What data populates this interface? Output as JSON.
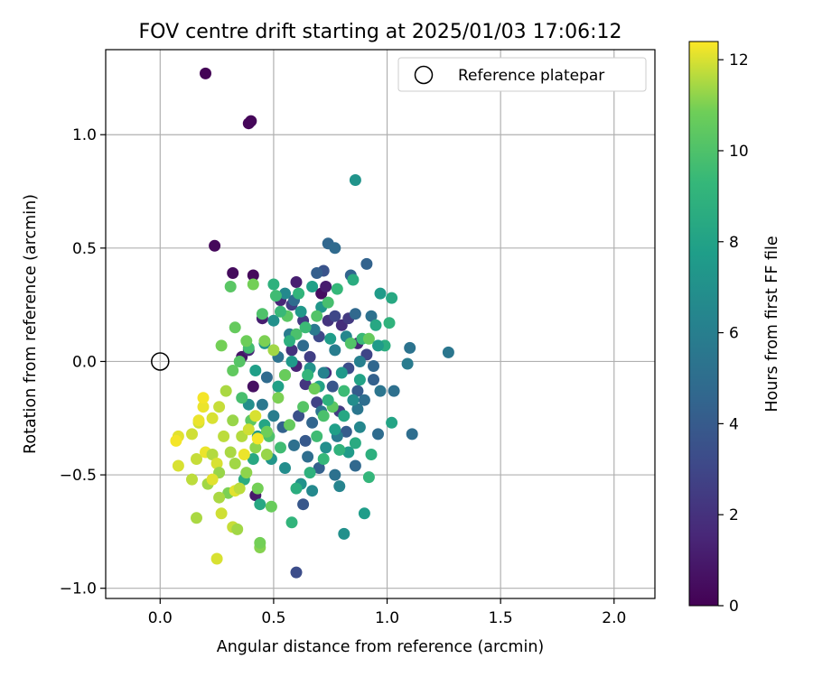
{
  "chart_data": {
    "type": "scatter",
    "title": "FOV centre drift starting at 2025/01/03 17:06:12",
    "xlabel": "Angular distance from reference (arcmin)",
    "ylabel": "Rotation from reference (arcmin)",
    "xlim": [
      -0.24,
      2.18
    ],
    "ylim": [
      -1.045,
      1.375
    ],
    "xticks": [
      0.0,
      0.5,
      1.0,
      1.5,
      2.0
    ],
    "xtick_labels": [
      "0.0",
      "0.5",
      "1.0",
      "1.5",
      "2.0"
    ],
    "yticks": [
      -1.0,
      -0.5,
      0.0,
      0.5,
      1.0
    ],
    "ytick_labels": [
      "−1.0",
      "−0.5",
      "0.0",
      "0.5",
      "1.0"
    ],
    "grid": true,
    "legend": {
      "position": "top-right",
      "label": "Reference platepar"
    },
    "reference_point": {
      "x": 0.0,
      "y": 0.0
    },
    "colorbar": {
      "label": "Hours from first FF file",
      "range": [
        0,
        12.4
      ],
      "ticks": [
        0,
        2,
        4,
        6,
        8,
        10,
        12
      ],
      "tick_labels": [
        "0",
        "2",
        "4",
        "6",
        "8",
        "10",
        "12"
      ],
      "colormap": "viridis"
    },
    "points": [
      [
        0.2,
        1.27,
        0.1
      ],
      [
        0.39,
        1.05,
        0.2
      ],
      [
        0.4,
        1.06,
        0.2
      ],
      [
        0.24,
        0.51,
        0.3
      ],
      [
        0.32,
        0.39,
        0.4
      ],
      [
        0.41,
        0.38,
        0.3
      ],
      [
        0.36,
        0.02,
        0.8
      ],
      [
        0.45,
        0.19,
        1.2
      ],
      [
        0.39,
        0.05,
        1.5
      ],
      [
        0.41,
        -0.11,
        0.6
      ],
      [
        0.42,
        -0.59,
        1.0
      ],
      [
        0.53,
        0.27,
        1.5
      ],
      [
        0.58,
        0.25,
        2.6
      ],
      [
        0.6,
        0.35,
        1.2
      ],
      [
        0.63,
        0.18,
        2.4
      ],
      [
        0.71,
        0.3,
        0.5
      ],
      [
        0.73,
        0.33,
        1.1
      ],
      [
        0.74,
        0.18,
        2.1
      ],
      [
        0.77,
        0.2,
        3.0
      ],
      [
        0.8,
        0.16,
        1.8
      ],
      [
        0.83,
        0.19,
        2.4
      ],
      [
        0.87,
        0.08,
        1.5
      ],
      [
        0.7,
        0.11,
        3.1
      ],
      [
        0.66,
        0.02,
        2.6
      ],
      [
        0.6,
        -0.02,
        1.4
      ],
      [
        0.58,
        0.05,
        2.0
      ],
      [
        0.55,
        -0.06,
        3.2
      ],
      [
        0.64,
        -0.1,
        2.2
      ],
      [
        0.61,
        -0.24,
        3.5
      ],
      [
        0.69,
        -0.18,
        2.8
      ],
      [
        0.73,
        -0.05,
        1.9
      ],
      [
        0.76,
        -0.11,
        3.7
      ],
      [
        0.79,
        -0.22,
        2.5
      ],
      [
        0.83,
        -0.03,
        3.3
      ],
      [
        0.87,
        -0.13,
        4.0
      ],
      [
        0.91,
        0.03,
        2.9
      ],
      [
        0.63,
        -0.63,
        3.8
      ],
      [
        0.6,
        -0.93,
        3.3
      ],
      [
        0.72,
        0.4,
        3.6
      ],
      [
        0.74,
        0.52,
        4.6
      ],
      [
        0.77,
        0.5,
        4.8
      ],
      [
        0.91,
        0.43,
        4.4
      ],
      [
        0.69,
        0.39,
        4.2
      ],
      [
        0.59,
        0.27,
        4.9
      ],
      [
        0.84,
        0.38,
        4.5
      ],
      [
        0.86,
        0.21,
        4.7
      ],
      [
        0.93,
        0.2,
        5.2
      ],
      [
        0.94,
        -0.02,
        4.6
      ],
      [
        0.9,
        -0.17,
        5.0
      ],
      [
        0.94,
        -0.08,
        4.3
      ],
      [
        0.87,
        -0.21,
        5.5
      ],
      [
        0.82,
        -0.31,
        4.1
      ],
      [
        0.78,
        -0.33,
        5.8
      ],
      [
        0.71,
        -0.22,
        5.4
      ],
      [
        0.67,
        -0.27,
        4.5
      ],
      [
        0.64,
        -0.35,
        3.9
      ],
      [
        0.59,
        -0.37,
        5.1
      ],
      [
        0.54,
        -0.29,
        4.4
      ],
      [
        0.5,
        -0.24,
        5.9
      ],
      [
        0.45,
        -0.19,
        5.6
      ],
      [
        0.47,
        -0.07,
        4.8
      ],
      [
        0.52,
        0.02,
        5.3
      ],
      [
        0.57,
        0.12,
        5.8
      ],
      [
        0.63,
        0.07,
        4.9
      ],
      [
        0.68,
        0.14,
        5.7
      ],
      [
        0.72,
        -0.05,
        6.2
      ],
      [
        0.77,
        0.05,
        5.9
      ],
      [
        0.82,
        0.11,
        6.4
      ],
      [
        0.88,
        0.0,
        6.0
      ],
      [
        0.97,
        -0.13,
        5.4
      ],
      [
        1.03,
        -0.13,
        5.1
      ],
      [
        1.1,
        0.06,
        5.3
      ],
      [
        1.09,
        -0.01,
        5.8
      ],
      [
        1.11,
        -0.32,
        5.0
      ],
      [
        1.27,
        0.04,
        5.5
      ],
      [
        0.96,
        -0.32,
        4.9
      ],
      [
        0.86,
        -0.46,
        4.7
      ],
      [
        0.77,
        -0.5,
        5.2
      ],
      [
        0.7,
        -0.47,
        4.3
      ],
      [
        0.65,
        -0.42,
        5.0
      ],
      [
        0.79,
        -0.55,
        6.3
      ],
      [
        0.67,
        -0.57,
        6.6
      ],
      [
        0.86,
        0.8,
        7.2
      ],
      [
        0.97,
        0.3,
        7.6
      ],
      [
        0.9,
        -0.67,
        7.7
      ],
      [
        0.81,
        -0.76,
        7.0
      ],
      [
        0.73,
        -0.38,
        6.9
      ],
      [
        0.62,
        -0.54,
        7.1
      ],
      [
        0.55,
        -0.47,
        6.8
      ],
      [
        0.49,
        -0.43,
        7.3
      ],
      [
        0.43,
        -0.33,
        7.5
      ],
      [
        0.39,
        -0.19,
        6.9
      ],
      [
        0.42,
        -0.04,
        7.8
      ],
      [
        0.46,
        0.08,
        7.2
      ],
      [
        0.5,
        0.18,
        7.0
      ],
      [
        0.55,
        0.3,
        6.6
      ],
      [
        0.62,
        0.22,
        7.4
      ],
      [
        0.67,
        0.33,
        7.9
      ],
      [
        0.71,
        0.24,
        7.3
      ],
      [
        0.75,
        0.1,
        7.7
      ],
      [
        0.8,
        -0.05,
        7.5
      ],
      [
        0.85,
        -0.17,
        6.8
      ],
      [
        0.88,
        -0.29,
        6.5
      ],
      [
        0.83,
        -0.4,
        7.6
      ],
      [
        0.77,
        -0.3,
        7.8
      ],
      [
        0.7,
        -0.11,
        8.0
      ],
      [
        0.66,
        -0.03,
        7.1
      ],
      [
        0.58,
        0.0,
        7.5
      ],
      [
        0.52,
        -0.11,
        7.9
      ],
      [
        0.46,
        -0.28,
        8.2
      ],
      [
        0.41,
        -0.43,
        8.4
      ],
      [
        0.37,
        -0.52,
        8.6
      ],
      [
        0.44,
        -0.63,
        8.3
      ],
      [
        0.58,
        -0.71,
        9.1
      ],
      [
        0.6,
        -0.56,
        8.7
      ],
      [
        0.66,
        -0.49,
        8.9
      ],
      [
        0.72,
        -0.43,
        9.3
      ],
      [
        0.79,
        -0.39,
        9.0
      ],
      [
        0.86,
        -0.36,
        8.5
      ],
      [
        0.93,
        -0.41,
        8.8
      ],
      [
        0.92,
        -0.51,
        9.2
      ],
      [
        1.02,
        -0.27,
        8.1
      ],
      [
        1.02,
        0.28,
        8.4
      ],
      [
        0.99,
        0.07,
        8.7
      ],
      [
        1.01,
        0.17,
        9.0
      ],
      [
        0.95,
        0.16,
        8.3
      ],
      [
        0.89,
        0.1,
        9.4
      ],
      [
        0.85,
        0.36,
        8.6
      ],
      [
        0.78,
        0.32,
        9.3
      ],
      [
        0.74,
        0.26,
        9.8
      ],
      [
        0.69,
        0.2,
        10.1
      ],
      [
        0.64,
        0.15,
        9.5
      ],
      [
        0.6,
        0.12,
        9.9
      ],
      [
        0.56,
        0.2,
        10.3
      ],
      [
        0.51,
        0.29,
        9.6
      ],
      [
        0.45,
        0.21,
        10.0
      ],
      [
        0.39,
        0.06,
        9.7
      ],
      [
        0.35,
        0.0,
        10.2
      ],
      [
        0.32,
        -0.04,
        10.5
      ],
      [
        0.36,
        -0.16,
        9.8
      ],
      [
        0.4,
        -0.26,
        10.4
      ],
      [
        0.48,
        -0.33,
        10.0
      ],
      [
        0.53,
        -0.38,
        9.6
      ],
      [
        0.57,
        -0.28,
        10.6
      ],
      [
        0.63,
        -0.2,
        10.2
      ],
      [
        0.68,
        -0.12,
        10.8
      ],
      [
        0.72,
        -0.24,
        9.9
      ],
      [
        0.76,
        -0.2,
        10.4
      ],
      [
        0.81,
        -0.13,
        9.5
      ],
      [
        0.84,
        0.08,
        10.1
      ],
      [
        0.92,
        0.1,
        10.6
      ],
      [
        0.5,
        0.34,
        8.9
      ],
      [
        0.44,
        -0.82,
        11.1
      ],
      [
        0.44,
        -0.8,
        10.9
      ],
      [
        0.49,
        -0.64,
        10.7
      ],
      [
        0.43,
        -0.56,
        10.9
      ],
      [
        0.38,
        -0.49,
        11.2
      ],
      [
        0.33,
        -0.45,
        11.4
      ],
      [
        0.3,
        -0.58,
        11.0
      ],
      [
        0.31,
        -0.4,
        11.5
      ],
      [
        0.28,
        -0.33,
        11.7
      ],
      [
        0.32,
        -0.26,
        11.3
      ],
      [
        0.36,
        -0.33,
        11.6
      ],
      [
        0.42,
        -0.38,
        11.2
      ],
      [
        0.47,
        -0.31,
        10.8
      ],
      [
        0.52,
        -0.16,
        11.0
      ],
      [
        0.55,
        -0.06,
        10.7
      ],
      [
        0.5,
        0.05,
        11.4
      ],
      [
        0.46,
        0.09,
        11.0
      ],
      [
        0.38,
        0.09,
        10.8
      ],
      [
        0.33,
        0.15,
        10.6
      ],
      [
        0.31,
        0.33,
        10.3
      ],
      [
        0.27,
        0.07,
        10.9
      ],
      [
        0.29,
        -0.13,
        11.5
      ],
      [
        0.26,
        -0.2,
        11.8
      ],
      [
        0.23,
        -0.25,
        12.0
      ],
      [
        0.19,
        -0.2,
        12.2
      ],
      [
        0.19,
        -0.16,
        12.3
      ],
      [
        0.17,
        -0.27,
        11.9
      ],
      [
        0.17,
        -0.26,
        12.2
      ],
      [
        0.14,
        -0.32,
        11.9
      ],
      [
        0.08,
        -0.33,
        12.1
      ],
      [
        0.07,
        -0.35,
        12.3
      ],
      [
        0.08,
        -0.46,
        12.0
      ],
      [
        0.16,
        -0.43,
        11.8
      ],
      [
        0.2,
        -0.4,
        12.2
      ],
      [
        0.23,
        -0.41,
        11.6
      ],
      [
        0.25,
        -0.45,
        12.0
      ],
      [
        0.26,
        -0.49,
        11.3
      ],
      [
        0.14,
        -0.52,
        11.7
      ],
      [
        0.21,
        -0.54,
        11.4
      ],
      [
        0.23,
        -0.52,
        12.1
      ],
      [
        0.26,
        -0.6,
        11.5
      ],
      [
        0.27,
        -0.67,
        11.9
      ],
      [
        0.16,
        -0.69,
        11.5
      ],
      [
        0.32,
        -0.73,
        11.8
      ],
      [
        0.34,
        -0.74,
        11.4
      ],
      [
        0.25,
        -0.87,
        12.0
      ],
      [
        0.33,
        -0.57,
        12.1
      ],
      [
        0.35,
        -0.56,
        11.7
      ],
      [
        0.37,
        -0.41,
        12.2
      ],
      [
        0.39,
        -0.3,
        11.9
      ],
      [
        0.43,
        -0.34,
        12.3
      ],
      [
        0.42,
        -0.24,
        12.0
      ],
      [
        0.47,
        -0.41,
        11.3
      ],
      [
        0.41,
        0.34,
        10.9
      ],
      [
        0.53,
        0.22,
        9.4
      ],
      [
        0.61,
        0.3,
        9.1
      ],
      [
        0.57,
        0.09,
        8.8
      ],
      [
        0.65,
        -0.06,
        9.2
      ],
      [
        0.69,
        -0.33,
        9.6
      ],
      [
        0.74,
        -0.17,
        8.9
      ],
      [
        0.81,
        -0.24,
        8.3
      ],
      [
        0.88,
        -0.08,
        8.0
      ],
      [
        0.96,
        0.07,
        7.6
      ]
    ]
  }
}
